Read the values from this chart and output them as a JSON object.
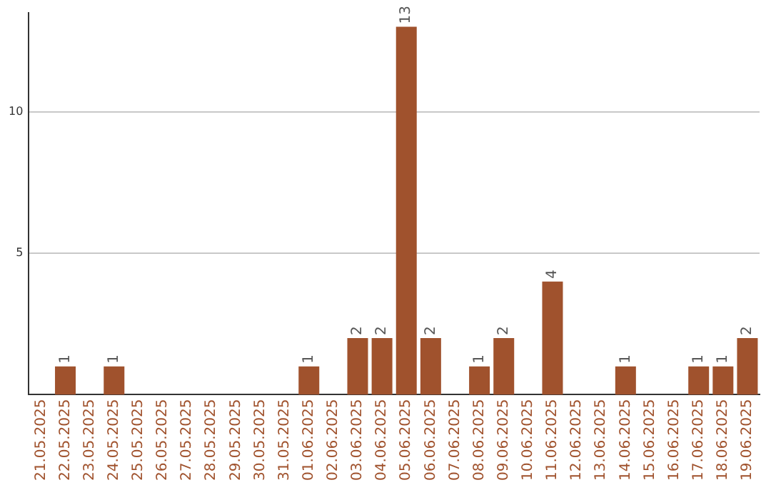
{
  "chart_data": {
    "type": "bar",
    "categories": [
      "21.05.2025",
      "22.05.2025",
      "23.05.2025",
      "24.05.2025",
      "25.05.2025",
      "26.05.2025",
      "27.05.2025",
      "28.05.2025",
      "29.05.2025",
      "30.05.2025",
      "31.05.2025",
      "01.06.2025",
      "02.06.2025",
      "03.06.2025",
      "04.06.2025",
      "05.06.2025",
      "06.06.2025",
      "07.06.2025",
      "08.06.2025",
      "09.06.2025",
      "10.06.2025",
      "11.06.2025",
      "12.06.2025",
      "13.06.2025",
      "14.06.2025",
      "15.06.2025",
      "16.06.2025",
      "17.06.2025",
      "18.06.2025",
      "19.06.2025"
    ],
    "values": [
      0,
      1,
      0,
      1,
      0,
      0,
      0,
      0,
      0,
      0,
      0,
      1,
      0,
      2,
      2,
      13,
      2,
      0,
      1,
      2,
      0,
      4,
      0,
      0,
      1,
      0,
      0,
      1,
      1,
      2
    ],
    "value_labels": [
      null,
      "1",
      null,
      "1",
      null,
      null,
      null,
      null,
      null,
      null,
      null,
      "1",
      null,
      "2",
      "2",
      "13",
      "2",
      null,
      "1",
      "2",
      null,
      "4",
      null,
      null,
      "1",
      null,
      null,
      "1",
      "1",
      "2"
    ],
    "color": "#a0522d",
    "ylim": [
      0,
      13.5
    ],
    "yticks": [
      5,
      10
    ],
    "grid": "y",
    "legend": false
  }
}
